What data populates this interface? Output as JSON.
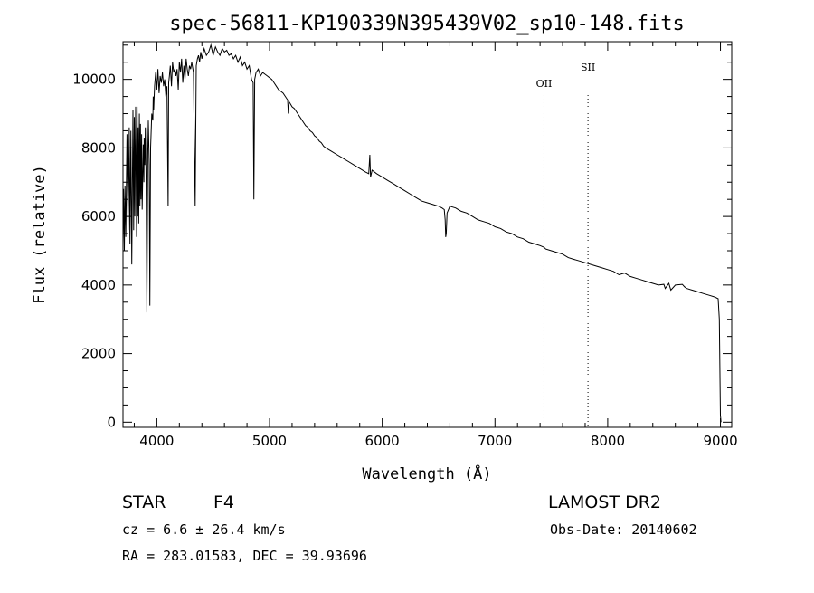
{
  "chart_data": {
    "type": "line",
    "title": "spec-56811-KP190339N395439V02_sp10-148.fits",
    "xlabel": "Wavelength (Å)",
    "ylabel": "Flux (relative)",
    "xlim": [
      3700,
      9100
    ],
    "ylim": [
      -150,
      11100
    ],
    "xticks": [
      4000,
      5000,
      6000,
      7000,
      8000,
      9000
    ],
    "yticks": [
      0,
      2000,
      4000,
      6000,
      8000,
      10000
    ],
    "grid": false,
    "legend": "none",
    "line_markers": [
      {
        "label": "OII",
        "x": 7435
      },
      {
        "label": "SII",
        "x": 7825
      }
    ],
    "series": [
      {
        "x": [
          3700,
          3705,
          3712,
          3718,
          3725,
          3735,
          3745,
          3755,
          3762,
          3770,
          3778,
          3788,
          3795,
          3800,
          3805,
          3812,
          3820,
          3825,
          3830,
          3835,
          3840,
          3845,
          3850,
          3855,
          3860,
          3865,
          3870,
          3880,
          3885,
          3888,
          3893,
          3898,
          3905,
          3912,
          3920,
          3925,
          3933,
          3938,
          3945,
          3955,
          3965,
          3968,
          3972,
          3980,
          3990,
          4000,
          4010,
          4020,
          4030,
          4040,
          4050,
          4060,
          4070,
          4080,
          4090,
          4100,
          4105,
          4112,
          4120,
          4130,
          4140,
          4150,
          4160,
          4170,
          4180,
          4190,
          4200,
          4210,
          4220,
          4230,
          4240,
          4250,
          4260,
          4270,
          4280,
          4290,
          4300,
          4310,
          4325,
          4340,
          4350,
          4360,
          4370,
          4380,
          4390,
          4400,
          4420,
          4440,
          4460,
          4480,
          4500,
          4520,
          4540,
          4560,
          4580,
          4600,
          4620,
          4640,
          4660,
          4680,
          4700,
          4720,
          4740,
          4760,
          4780,
          4800,
          4820,
          4840,
          4855,
          4861,
          4868,
          4880,
          4900,
          4920,
          4940,
          4960,
          4980,
          5000,
          5020,
          5040,
          5060,
          5080,
          5100,
          5120,
          5140,
          5160,
          5167,
          5173,
          5183,
          5200,
          5220,
          5240,
          5260,
          5280,
          5300,
          5320,
          5340,
          5360,
          5380,
          5400,
          5420,
          5440,
          5460,
          5480,
          5500,
          5550,
          5600,
          5650,
          5700,
          5750,
          5800,
          5850,
          5880,
          5890,
          5896,
          5910,
          5950,
          6000,
          6050,
          6100,
          6150,
          6200,
          6250,
          6300,
          6350,
          6400,
          6450,
          6500,
          6530,
          6550,
          6558,
          6563,
          6568,
          6575,
          6600,
          6650,
          6700,
          6750,
          6800,
          6850,
          6900,
          6950,
          7000,
          7050,
          7100,
          7150,
          7200,
          7250,
          7300,
          7350,
          7400,
          7435,
          7450,
          7500,
          7550,
          7600,
          7650,
          7700,
          7750,
          7800,
          7850,
          7900,
          7950,
          8000,
          8050,
          8100,
          8150,
          8200,
          8250,
          8300,
          8350,
          8400,
          8450,
          8498,
          8510,
          8542,
          8560,
          8600,
          8662,
          8680,
          8700,
          8750,
          8800,
          8850,
          8900,
          8950,
          8980,
          8990,
          9000,
          9005
        ],
        "values": [
          5200,
          6800,
          5000,
          6900,
          5400,
          8400,
          5600,
          8600,
          5200,
          8500,
          4600,
          9100,
          5600,
          8900,
          6000,
          9200,
          5400,
          9200,
          6000,
          8600,
          5800,
          9000,
          6300,
          8700,
          6500,
          8400,
          6200,
          8100,
          7000,
          8300,
          7500,
          8600,
          7200,
          3200,
          7800,
          8800,
          7500,
          3400,
          8000,
          9000,
          8800,
          9500,
          9100,
          9800,
          10200,
          9700,
          10300,
          9600,
          10100,
          9900,
          10200,
          9800,
          10000,
          9500,
          9800,
          6300,
          9900,
          10100,
          10400,
          9800,
          10500,
          10200,
          10300,
          10100,
          10300,
          9700,
          10500,
          10200,
          10600,
          9900,
          10400,
          10000,
          10600,
          10300,
          10100,
          10400,
          10300,
          10500,
          10200,
          6300,
          10400,
          10600,
          10700,
          10500,
          10800,
          10600,
          10900,
          10700,
          10800,
          11000,
          10700,
          10950,
          10800,
          10700,
          10900,
          10800,
          10850,
          10700,
          10750,
          10600,
          10700,
          10500,
          10650,
          10400,
          10500,
          10300,
          10400,
          10000,
          9900,
          6500,
          10000,
          10200,
          10300,
          10100,
          10200,
          10150,
          10100,
          10050,
          10000,
          9900,
          9800,
          9700,
          9650,
          9600,
          9500,
          9400,
          9000,
          9350,
          9300,
          9200,
          9150,
          9050,
          8950,
          8850,
          8750,
          8650,
          8600,
          8500,
          8450,
          8350,
          8300,
          8200,
          8150,
          8050,
          8000,
          7900,
          7800,
          7700,
          7600,
          7500,
          7400,
          7300,
          7250,
          7800,
          7150,
          7350,
          7250,
          7150,
          7050,
          6950,
          6850,
          6750,
          6650,
          6550,
          6450,
          6400,
          6350,
          6300,
          6250,
          6200,
          5900,
          5400,
          5500,
          6100,
          6300,
          6250,
          6150,
          6100,
          6000,
          5900,
          5850,
          5800,
          5700,
          5650,
          5550,
          5500,
          5400,
          5350,
          5250,
          5200,
          5150,
          5100,
          5050,
          5000,
          4950,
          4900,
          4800,
          4750,
          4700,
          4650,
          4600,
          4550,
          4500,
          4450,
          4400,
          4300,
          4350,
          4250,
          4200,
          4150,
          4100,
          4050,
          4000,
          4020,
          3900,
          4050,
          3850,
          4000,
          4020,
          3950,
          3900,
          3850,
          3800,
          3750,
          3700,
          3650,
          3600,
          3000,
          200,
          0
        ]
      }
    ]
  },
  "info": {
    "object_class": "STAR",
    "subclass": "F4",
    "survey": "LAMOST DR2",
    "redshift_line": "cz = 6.6 ± 26.4 km/s",
    "obs_date": "Obs-Date: 20140602",
    "coords": "RA = 283.01583, DEC =  39.93696"
  }
}
